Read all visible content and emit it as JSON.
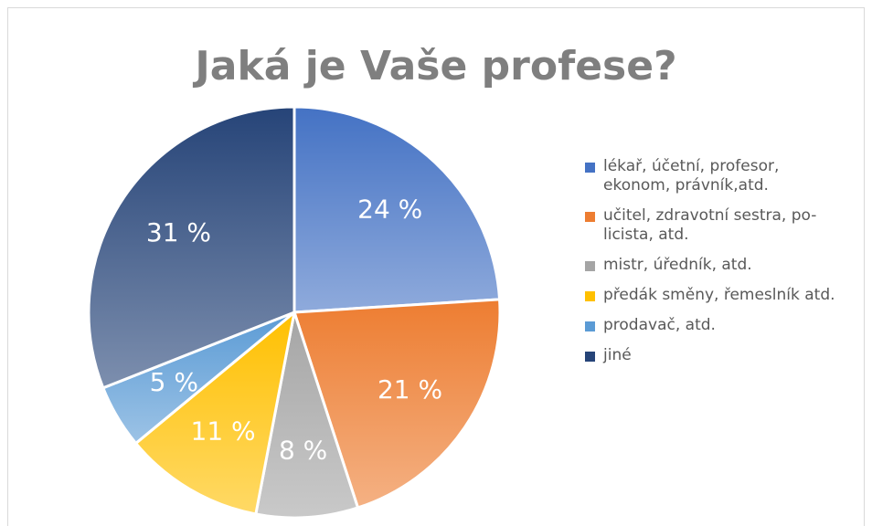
{
  "chart_data": {
    "type": "pie",
    "title": "Jaká je Vaše profese?",
    "categories": [
      "lékař, účetní, profesor, ekonom, právník,atd.",
      "učitel, zdravotní sestra, po-licista, atd.",
      "mistr, úředník, atd.",
      "předák směny, řemeslník atd.",
      "prodavač, atd.",
      "jiné"
    ],
    "values": [
      24,
      21,
      8,
      11,
      5,
      31
    ],
    "value_labels": [
      "24 %",
      "21 %",
      "8 %",
      "11 %",
      "5 %",
      "31 %"
    ],
    "colors": [
      "#4472c4",
      "#ed7d31",
      "#a5a5a5",
      "#ffc000",
      "#5b9bd5",
      "#264478"
    ],
    "legend": "right"
  }
}
